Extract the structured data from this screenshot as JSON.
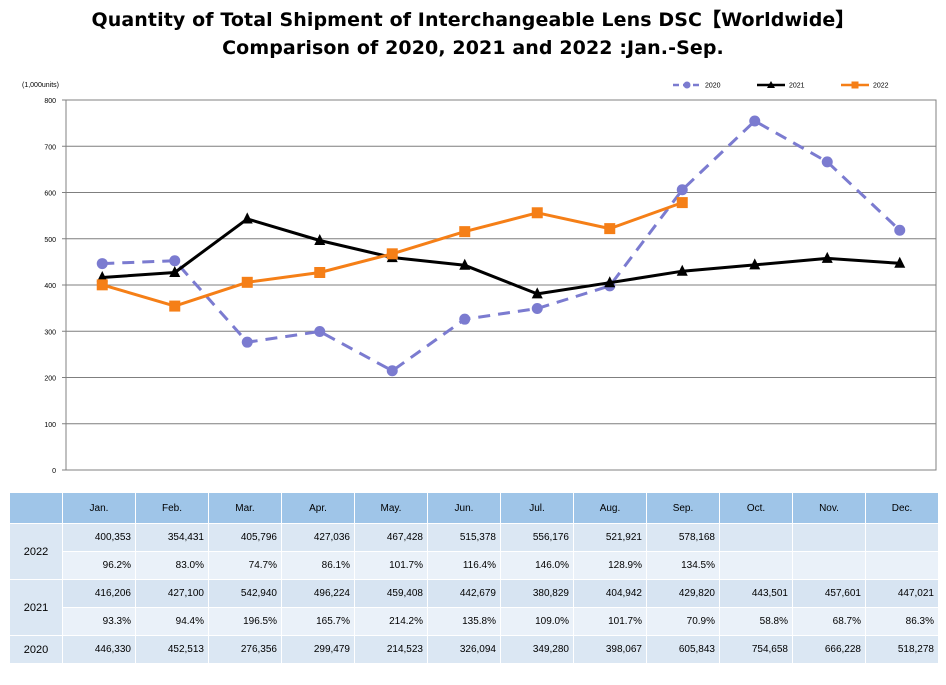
{
  "title_line1": "Quantity of Total Shipment of Interchangeable Lens DSC【Worldwide】",
  "title_line2": "Comparison of 2020, 2021 and 2022 :Jan.-Sep.",
  "chart_data": {
    "type": "line",
    "ylabel": "(1,000units)",
    "ylim": [
      0,
      800
    ],
    "yticks": [
      "0",
      "100",
      "200",
      "300",
      "400",
      "500",
      "600",
      "700",
      "800"
    ],
    "categories": [
      "Jan.",
      "Feb.",
      "Mar.",
      "Apr.",
      "May.",
      "Jun.",
      "Jul.",
      "Aug.",
      "Sep.",
      "Oct.",
      "Nov.",
      "Dec."
    ],
    "grid": true,
    "legend_position": "top-right",
    "series": [
      {
        "name": "2020",
        "color": "#7b7bd0",
        "style": "dashed",
        "marker": "circle",
        "values": [
          446.33,
          452.513,
          276.356,
          299.479,
          214.523,
          326.094,
          349.28,
          398.067,
          605.843,
          754.658,
          666.228,
          518.278
        ]
      },
      {
        "name": "2021",
        "color": "#000000",
        "style": "solid",
        "marker": "triangle",
        "values": [
          416.206,
          427.1,
          542.94,
          496.224,
          459.408,
          442.679,
          380.829,
          404.942,
          429.82,
          443.501,
          457.601,
          447.021
        ]
      },
      {
        "name": "2022",
        "color": "#f57f17",
        "style": "solid",
        "marker": "square",
        "values": [
          400.353,
          354.431,
          405.796,
          427.036,
          467.428,
          515.378,
          556.176,
          521.921,
          578.168,
          null,
          null,
          null
        ]
      }
    ]
  },
  "table": {
    "months": [
      "Jan.",
      "Feb.",
      "Mar.",
      "Apr.",
      "May.",
      "Jun.",
      "Jul.",
      "Aug.",
      "Sep.",
      "Oct.",
      "Nov.",
      "Dec."
    ],
    "y2022_label": "2022",
    "y2022_units": [
      "400,353",
      "354,431",
      "405,796",
      "427,036",
      "467,428",
      "515,378",
      "556,176",
      "521,921",
      "578,168",
      "",
      "",
      ""
    ],
    "y2022_pct": [
      "96.2%",
      "83.0%",
      "74.7%",
      "86.1%",
      "101.7%",
      "116.4%",
      "146.0%",
      "128.9%",
      "134.5%",
      "",
      "",
      ""
    ],
    "y2021_label": "2021",
    "y2021_units": [
      "416,206",
      "427,100",
      "542,940",
      "496,224",
      "459,408",
      "442,679",
      "380,829",
      "404,942",
      "429,820",
      "443,501",
      "457,601",
      "447,021"
    ],
    "y2021_pct": [
      "93.3%",
      "94.4%",
      "196.5%",
      "165.7%",
      "214.2%",
      "135.8%",
      "109.0%",
      "101.7%",
      "70.9%",
      "58.8%",
      "68.7%",
      "86.3%"
    ],
    "y2020_label": "2020",
    "y2020_units": [
      "446,330",
      "452,513",
      "276,356",
      "299,479",
      "214,523",
      "326,094",
      "349,280",
      "398,067",
      "605,843",
      "754,658",
      "666,228",
      "518,278"
    ]
  }
}
